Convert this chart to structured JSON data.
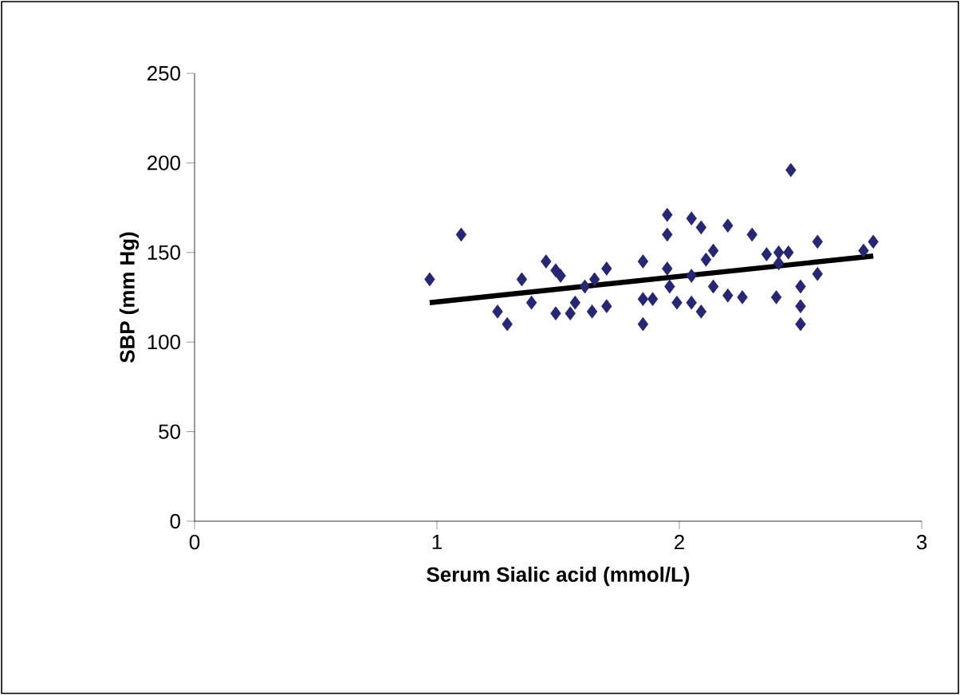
{
  "chart_data": {
    "type": "scatter",
    "xlabel": "Serum Sialic acid (mmol/L)",
    "ylabel": "SBP (mm Hg)",
    "xlim": [
      0,
      3
    ],
    "ylim": [
      0,
      250
    ],
    "xticks": [
      0,
      1,
      2,
      3
    ],
    "yticks": [
      0,
      50,
      100,
      150,
      200,
      250
    ],
    "marker": "diamond",
    "grid": false,
    "series": [
      {
        "color": "#262673",
        "x": [
          0.97,
          1.1,
          1.35,
          1.45,
          1.49,
          1.25,
          1.29,
          1.39,
          1.49,
          1.55,
          1.57,
          1.64,
          1.7,
          1.61,
          1.65,
          1.7,
          1.85,
          1.85,
          1.85,
          1.51,
          2.46,
          1.95,
          1.95,
          2.05,
          2.09,
          2.2,
          2.3,
          2.14,
          2.11,
          1.95,
          2.36,
          2.41,
          2.45,
          2.57,
          2.57,
          2.5,
          2.8,
          2.76,
          2.41,
          2.2,
          2.26,
          2.4,
          2.5,
          2.5,
          2.09,
          1.99,
          1.89,
          2.05,
          1.96,
          2.14,
          2.05
        ],
        "values": [
          135,
          160,
          135,
          145,
          140,
          117,
          110,
          122,
          116,
          116,
          122,
          117,
          120,
          131,
          135,
          141,
          145,
          124,
          110,
          137,
          196,
          171,
          160,
          169,
          164,
          165,
          160,
          151,
          146,
          141,
          149,
          150,
          150,
          156,
          138,
          131,
          156,
          151,
          144,
          126,
          125,
          125,
          120,
          110,
          117,
          122,
          124,
          122,
          131,
          131,
          137
        ]
      },
      {
        "type": "line",
        "color": "#000000",
        "marker": "none",
        "x": [
          0.97,
          2.8
        ],
        "values": [
          122,
          148
        ]
      }
    ]
  }
}
